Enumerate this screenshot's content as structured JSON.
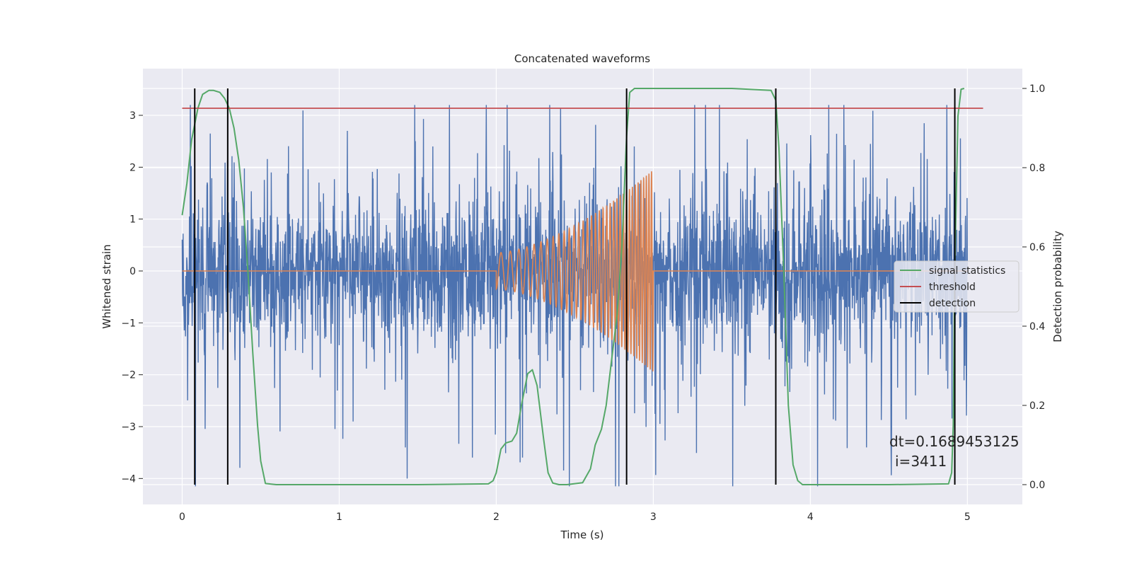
{
  "chart_data": {
    "type": "line",
    "title": "Concatenated waveforms",
    "xlabel": "Time (s)",
    "ylabel": "Whitened strain",
    "ylabel_right": "Detection probability",
    "xlim": [
      -0.25,
      5.35
    ],
    "ylim": [
      -4.5,
      3.9
    ],
    "ylim_right": [
      -0.05,
      1.05
    ],
    "x_ticks": [
      0,
      1,
      2,
      3,
      4,
      5
    ],
    "y_ticks": [
      -4,
      -3,
      -2,
      -1,
      0,
      1,
      2,
      3
    ],
    "y_ticks_right": [
      0.0,
      0.2,
      0.4,
      0.6,
      0.8,
      1.0
    ],
    "x_tick_labels": [
      "0",
      "1",
      "2",
      "3",
      "4",
      "5"
    ],
    "y_tick_labels": [
      "−4",
      "−3",
      "−2",
      "−1",
      "0",
      "1",
      "2",
      "3"
    ],
    "y_tick_labels_right": [
      "0.0",
      "0.2",
      "0.4",
      "0.6",
      "0.8",
      "1.0"
    ],
    "grid": true,
    "legend_position": "center-right",
    "colors": {
      "strain": "#4c72b0",
      "injection": "#dd8452",
      "signal_statistics": "#55a868",
      "threshold": "#c44e52",
      "detection": "#000000",
      "background": "#eaeaf2",
      "grid": "#ffffff"
    },
    "series": [
      {
        "name": "",
        "axis": "left",
        "kind": "noise",
        "x_range": [
          0,
          5.0
        ],
        "amplitude_core": 0.65,
        "spike_max": 3.2,
        "spike_min": -4.15
      },
      {
        "name": "",
        "axis": "left",
        "kind": "chirp",
        "x_start": 2.0,
        "x_end": 3.0,
        "amp_start": 0.35,
        "amp_end": 1.95,
        "flat_range": [
          0,
          5.0
        ]
      },
      {
        "name": "signal statistics",
        "axis": "right",
        "x": [
          0.0,
          0.03,
          0.06,
          0.1,
          0.13,
          0.17,
          0.2,
          0.24,
          0.27,
          0.3,
          0.33,
          0.36,
          0.39,
          0.42,
          0.45,
          0.48,
          0.5,
          0.53,
          0.6,
          1.0,
          1.5,
          1.95,
          1.98,
          2.0,
          2.03,
          2.06,
          2.1,
          2.13,
          2.16,
          2.2,
          2.23,
          2.26,
          2.3,
          2.33,
          2.36,
          2.4,
          2.45,
          2.55,
          2.6,
          2.63,
          2.67,
          2.7,
          2.73,
          2.77,
          2.8,
          2.83,
          2.85,
          2.88,
          3.0,
          3.5,
          3.75,
          3.78,
          3.8,
          3.83,
          3.86,
          3.89,
          3.92,
          3.95,
          4.0,
          4.5,
          4.88,
          4.9,
          4.91,
          4.92,
          4.94,
          4.96,
          4.98
        ],
        "values": [
          0.68,
          0.76,
          0.87,
          0.95,
          0.985,
          0.995,
          0.995,
          0.99,
          0.975,
          0.95,
          0.9,
          0.82,
          0.7,
          0.53,
          0.33,
          0.15,
          0.06,
          0.003,
          0.0,
          0.0,
          0.0,
          0.002,
          0.01,
          0.03,
          0.09,
          0.105,
          0.11,
          0.13,
          0.2,
          0.28,
          0.29,
          0.25,
          0.12,
          0.03,
          0.004,
          0.0,
          0.0,
          0.005,
          0.04,
          0.1,
          0.14,
          0.2,
          0.3,
          0.43,
          0.6,
          0.88,
          0.99,
          1.0,
          1.0,
          1.0,
          0.995,
          0.97,
          0.85,
          0.55,
          0.2,
          0.05,
          0.01,
          0.0,
          0.0,
          0.0,
          0.002,
          0.03,
          0.15,
          0.55,
          0.93,
          0.998,
          1.0
        ]
      },
      {
        "name": "threshold",
        "axis": "right",
        "x": [
          0.0,
          5.1
        ],
        "values": [
          0.95,
          0.95
        ]
      },
      {
        "name": "detection",
        "axis": "right",
        "kind": "vlines",
        "x": [
          0.08,
          0.29,
          2.83,
          3.78,
          4.92
        ],
        "y_range": [
          0.0,
          1.0
        ]
      }
    ],
    "annotation": {
      "line1": "dt=0.1689453125",
      "line2": "i=3411",
      "x": 4.51,
      "y": -3.7
    }
  }
}
